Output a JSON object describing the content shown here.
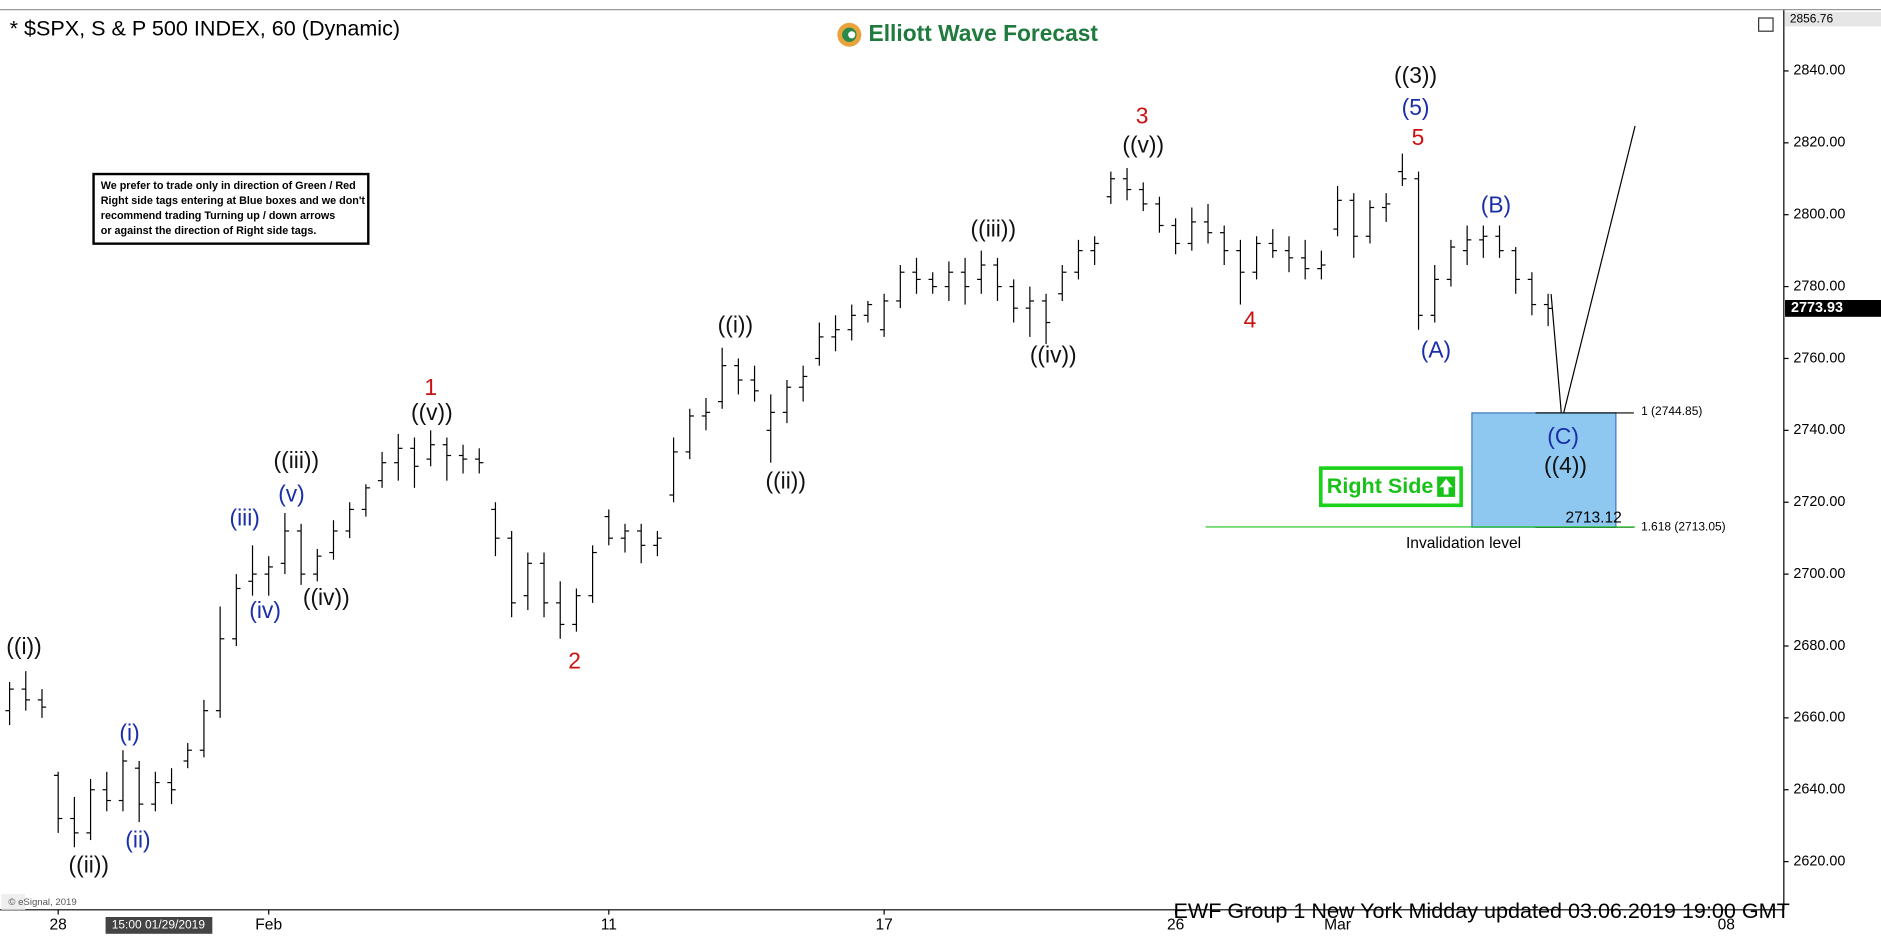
{
  "chart_data": {
    "type": "ohlc",
    "title": "* $SPX, S & P 500 INDEX, 60 (Dynamic)",
    "brand": "Elliott Wave Forecast",
    "note": [
      "We prefer to trade only in direction of Green / Red",
      "Right side tags entering at Blue boxes and we don't",
      "recommend trading Turning up / down arrows",
      "or against the direction of Right side tags."
    ],
    "right_side": "Right Side",
    "footer": "EWF Group 1 New York Midday  updated 03.06.2019 19:00 GMT",
    "copyright": "© eSignal, 2019",
    "cursor_label": "15:00 01/29/2019",
    "color": "#000000",
    "categories": [
      null,
      null,
      null,
      "28",
      null,
      null,
      null,
      null,
      null,
      null,
      null,
      null,
      null,
      null,
      null,
      null,
      "Feb",
      null,
      null,
      null,
      null,
      null,
      null,
      null,
      null,
      null,
      null,
      null,
      null,
      null,
      null,
      null,
      null,
      null,
      null,
      null,
      null,
      "11",
      null,
      null,
      null,
      null,
      null,
      null,
      null,
      null,
      null,
      null,
      null,
      null,
      null,
      null,
      null,
      null,
      "17",
      null,
      null,
      null,
      null,
      null,
      null,
      null,
      null,
      null,
      null,
      null,
      null,
      null,
      null,
      null,
      null,
      null,
      "26",
      null,
      null,
      null,
      null,
      null,
      null,
      null,
      null,
      null,
      "Mar",
      null,
      null,
      null,
      null,
      null,
      null,
      null,
      null,
      null,
      null,
      null,
      null,
      null,
      null,
      null,
      null,
      null,
      null,
      null,
      null,
      null,
      null,
      null,
      "08",
      null,
      null,
      null
    ],
    "ohlc": [
      [
        2662,
        2670,
        2658,
        2668
      ],
      [
        2668,
        2673,
        2662,
        2665
      ],
      [
        2665,
        2668,
        2660,
        2663
      ],
      [
        2644,
        2645,
        2628,
        2632
      ],
      [
        2632,
        2638,
        2624,
        2628
      ],
      [
        2628,
        2643,
        2626,
        2640
      ],
      [
        2640,
        2645,
        2634,
        2637
      ],
      [
        2637,
        2651,
        2634,
        2648
      ],
      [
        2646,
        2648,
        2631,
        2636
      ],
      [
        2636,
        2645,
        2634,
        2642
      ],
      [
        2642,
        2646,
        2636,
        2640
      ],
      [
        2648,
        2653,
        2646,
        2651
      ],
      [
        2651,
        2665,
        2649,
        2662
      ],
      [
        2662,
        2691,
        2660,
        2682
      ],
      [
        2682,
        2700,
        2680,
        2696
      ],
      [
        2698,
        2708,
        2694,
        2700
      ],
      [
        2700,
        2705,
        2694,
        2702
      ],
      [
        2703,
        2717,
        2700,
        2712
      ],
      [
        2712,
        2714,
        2697,
        2700
      ],
      [
        2700,
        2707,
        2698,
        2705
      ],
      [
        2706,
        2715,
        2704,
        2712
      ],
      [
        2712,
        2720,
        2710,
        2718
      ],
      [
        2718,
        2725,
        2716,
        2724
      ],
      [
        2726,
        2734,
        2724,
        2731
      ],
      [
        2731,
        2739,
        2726,
        2735
      ],
      [
        2735,
        2738,
        2724,
        2730
      ],
      [
        2732,
        2740,
        2730,
        2736
      ],
      [
        2736,
        2738,
        2726,
        2733
      ],
      [
        2733,
        2736,
        2728,
        2732
      ],
      [
        2732,
        2735,
        2728,
        2731
      ],
      [
        2718,
        2720,
        2705,
        2710
      ],
      [
        2710,
        2712,
        2688,
        2692
      ],
      [
        2694,
        2706,
        2690,
        2703
      ],
      [
        2703,
        2706,
        2688,
        2692
      ],
      [
        2692,
        2698,
        2682,
        2686
      ],
      [
        2686,
        2696,
        2684,
        2694
      ],
      [
        2694,
        2708,
        2692,
        2706
      ],
      [
        2716,
        2718,
        2708,
        2710
      ],
      [
        2710,
        2714,
        2706,
        2712
      ],
      [
        2712,
        2714,
        2703,
        2708
      ],
      [
        2708,
        2712,
        2705,
        2710
      ],
      [
        2722,
        2738,
        2720,
        2734
      ],
      [
        2734,
        2746,
        2732,
        2744
      ],
      [
        2744,
        2749,
        2740,
        2745
      ],
      [
        2748,
        2763,
        2746,
        2758
      ],
      [
        2758,
        2760,
        2750,
        2754
      ],
      [
        2754,
        2758,
        2748,
        2751
      ],
      [
        2740,
        2750,
        2731,
        2745
      ],
      [
        2745,
        2754,
        2742,
        2752
      ],
      [
        2752,
        2758,
        2748,
        2755
      ],
      [
        2760,
        2770,
        2758,
        2766
      ],
      [
        2766,
        2772,
        2762,
        2768
      ],
      [
        2768,
        2775,
        2765,
        2772
      ],
      [
        2772,
        2776,
        2770,
        2775
      ],
      [
        2768,
        2778,
        2766,
        2776
      ],
      [
        2776,
        2786,
        2774,
        2784
      ],
      [
        2784,
        2788,
        2778,
        2782
      ],
      [
        2782,
        2784,
        2778,
        2780
      ],
      [
        2780,
        2787,
        2776,
        2784
      ],
      [
        2784,
        2788,
        2775,
        2780
      ],
      [
        2782,
        2790,
        2778,
        2786
      ],
      [
        2786,
        2788,
        2776,
        2780
      ],
      [
        2780,
        2782,
        2770,
        2774
      ],
      [
        2774,
        2780,
        2766,
        2776
      ],
      [
        2776,
        2778,
        2764,
        2770
      ],
      [
        2778,
        2786,
        2776,
        2784
      ],
      [
        2784,
        2793,
        2782,
        2790
      ],
      [
        2790,
        2794,
        2786,
        2792
      ],
      [
        2805,
        2812,
        2803,
        2810
      ],
      [
        2810,
        2813,
        2804,
        2807
      ],
      [
        2807,
        2809,
        2801,
        2803
      ],
      [
        2803,
        2805,
        2795,
        2797
      ],
      [
        2797,
        2799,
        2789,
        2792
      ],
      [
        2792,
        2802,
        2790,
        2798
      ],
      [
        2798,
        2803,
        2792,
        2795
      ],
      [
        2795,
        2797,
        2786,
        2790
      ],
      [
        2790,
        2793,
        2775,
        2784
      ],
      [
        2784,
        2794,
        2782,
        2792
      ],
      [
        2792,
        2796,
        2788,
        2790
      ],
      [
        2790,
        2794,
        2784,
        2788
      ],
      [
        2788,
        2793,
        2782,
        2785
      ],
      [
        2785,
        2790,
        2782,
        2786
      ],
      [
        2796,
        2808,
        2794,
        2804
      ],
      [
        2804,
        2806,
        2788,
        2794
      ],
      [
        2794,
        2804,
        2792,
        2802
      ],
      [
        2802,
        2806,
        2798,
        2803
      ],
      [
        2812,
        2817,
        2808,
        2810
      ],
      [
        2810,
        2812,
        2768,
        2772
      ],
      [
        2772,
        2786,
        2770,
        2782
      ],
      [
        2782,
        2793,
        2780,
        2791
      ],
      [
        2790,
        2797,
        2786,
        2793
      ],
      [
        2793,
        2797,
        2788,
        2794
      ],
      [
        2794,
        2797,
        2788,
        2790
      ],
      [
        2790,
        2791,
        2778,
        2782
      ],
      [
        2782,
        2784,
        2772,
        2775
      ],
      [
        2775,
        2778,
        2769,
        2773.93
      ],
      null,
      null,
      null,
      null,
      null,
      null,
      null,
      null,
      null,
      null,
      null,
      null,
      null,
      null
    ],
    "ylim": [
      2606.6,
      2856.4
    ],
    "yticks": [
      {
        "value": 2620,
        "label": "2620.00"
      },
      {
        "value": 2640,
        "label": "2640.00"
      },
      {
        "value": 2660,
        "label": "2660.00"
      },
      {
        "value": 2680,
        "label": "2680.00"
      },
      {
        "value": 2700,
        "label": "2700.00"
      },
      {
        "value": 2720,
        "label": "2720.00"
      },
      {
        "value": 2740,
        "label": "2740.00"
      },
      {
        "value": 2760,
        "label": "2760.00"
      },
      {
        "value": 2780,
        "label": "2780.00"
      },
      {
        "value": 2800,
        "label": "2800.00"
      },
      {
        "value": 2820,
        "label": "2820.00"
      },
      {
        "value": 2840,
        "label": "2840.00"
      }
    ],
    "top_price": 2856.76,
    "last_price": 2773.93,
    "box_levels": [
      {
        "value": 2744.85,
        "label": "1 (2744.85)"
      },
      {
        "value": 2713.05,
        "label": "1.618 (2713.05)"
      }
    ],
    "invalidation": 2713.12,
    "invalidation_label": "Invalidation level",
    "annotations": [
      {
        "text": "((i))",
        "color": "#111111"
      },
      {
        "text": "((ii))",
        "color": "#111111"
      },
      {
        "text": "(i)",
        "color": "#1a2ea8"
      },
      {
        "text": "(ii)",
        "color": "#1a2ea8"
      },
      {
        "text": "(iii)",
        "color": "#1a2ea8"
      },
      {
        "text": "(iv)",
        "color": "#1a2ea8"
      },
      {
        "text": "(v)",
        "color": "#1a2ea8"
      },
      {
        "text": "((iii))",
        "color": "#111111"
      },
      {
        "text": "((iv))",
        "color": "#111111"
      },
      {
        "text": "1",
        "color": "#cc1111"
      },
      {
        "text": "((v))",
        "color": "#111111"
      },
      {
        "text": "2",
        "color": "#cc1111"
      },
      {
        "text": "((i))",
        "color": "#111111"
      },
      {
        "text": "((ii))",
        "color": "#111111"
      },
      {
        "text": "((iii))",
        "color": "#111111"
      },
      {
        "text": "((iv))",
        "color": "#111111"
      },
      {
        "text": "3",
        "color": "#cc1111"
      },
      {
        "text": "((v))",
        "color": "#111111"
      },
      {
        "text": "4",
        "color": "#cc1111"
      },
      {
        "text": "((3))",
        "color": "#111111"
      },
      {
        "text": "(5)",
        "color": "#1a2ea8"
      },
      {
        "text": "5",
        "color": "#cc1111"
      },
      {
        "text": "(A)",
        "color": "#1a2ea8"
      },
      {
        "text": "(B)",
        "color": "#1a2ea8"
      },
      {
        "text": "(C)",
        "color": "#1a2ea8"
      },
      {
        "text": "((4))",
        "color": "#111111"
      }
    ]
  }
}
